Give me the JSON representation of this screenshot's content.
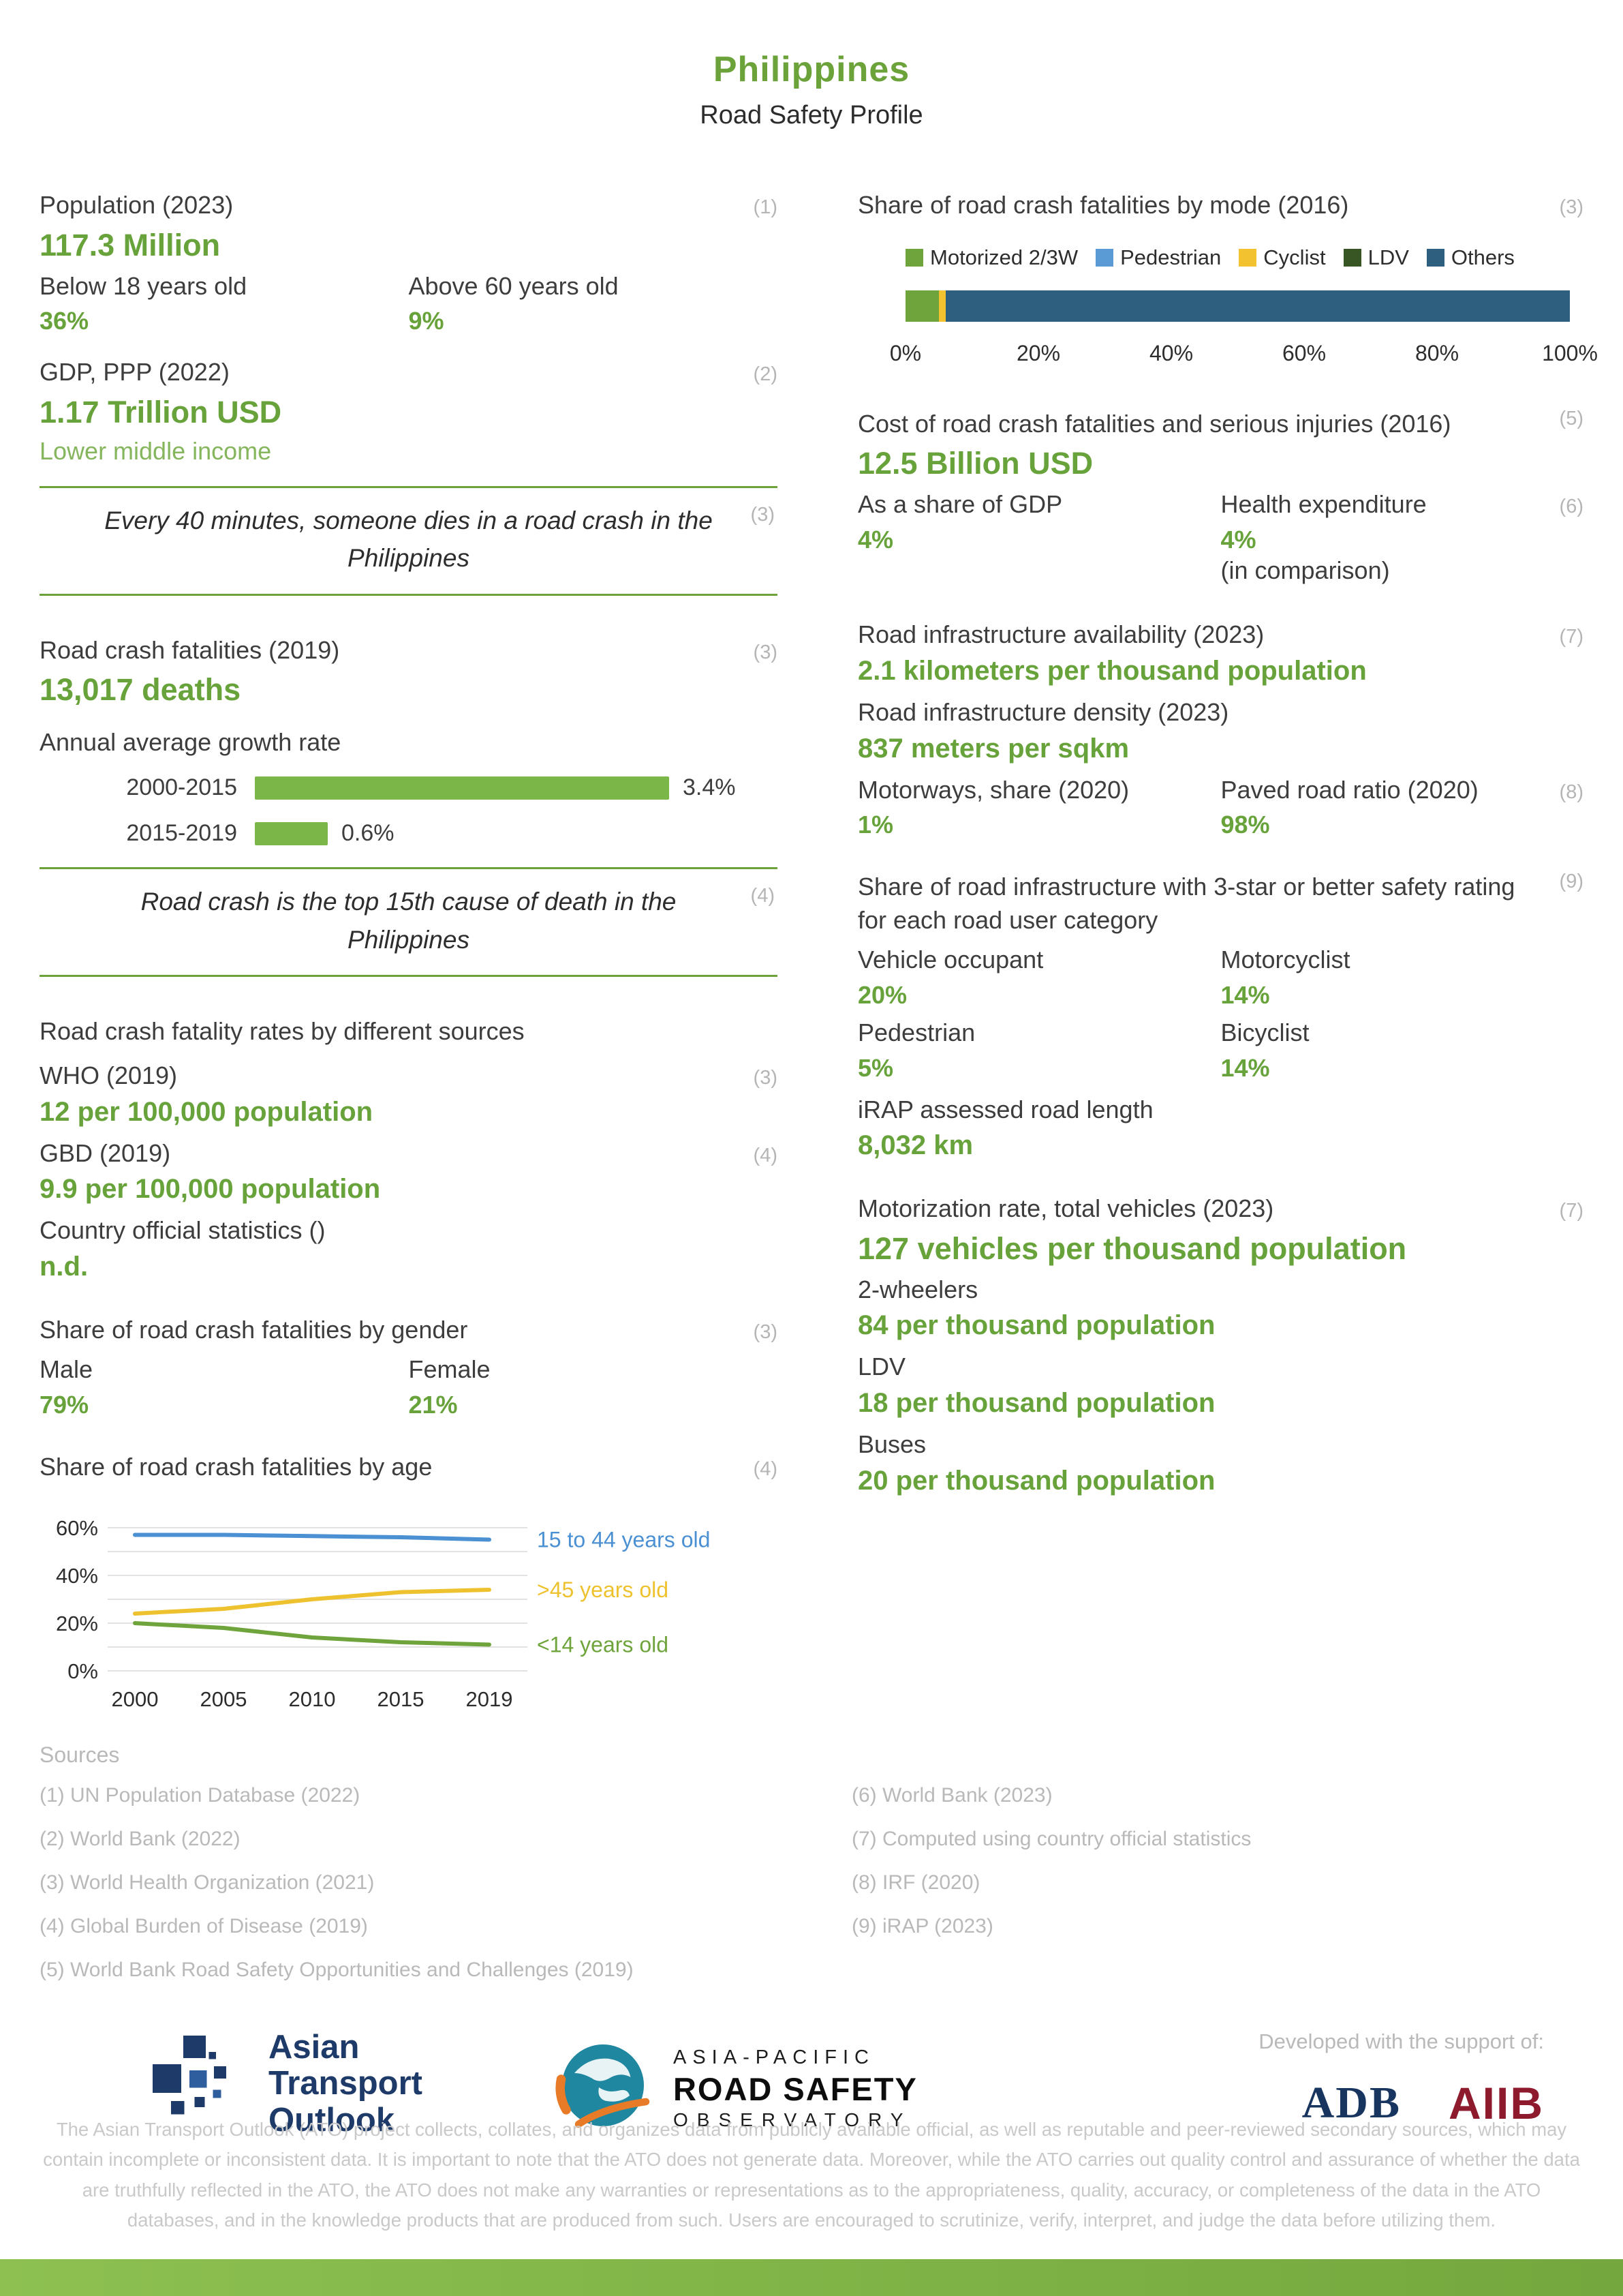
{
  "page": {
    "title": "Philippines",
    "subtitle": "Road Safety Profile"
  },
  "colors": {
    "accent_green": "#6ba33a",
    "value_green": "#67a23a",
    "light_green": "#85b55c",
    "ref_gray": "#b5b5b5",
    "footer_bar_green": "#7fb24a",
    "ato_navy": "#1e3a68",
    "aiib_red": "#8d1b2d"
  },
  "left": {
    "population": {
      "label": "Population (2023)",
      "ref": "(1)",
      "value": "117.3 Million",
      "below18_label": "Below 18 years old",
      "below18_value": "36%",
      "above60_label": "Above 60 years old",
      "above60_value": "9%"
    },
    "gdp": {
      "label": "GDP, PPP (2022)",
      "ref": "(2)",
      "value": "1.17 Trillion USD",
      "income": "Lower middle income"
    },
    "callout1": {
      "text": "Every 40 minutes, someone dies in a road crash in the Philippines",
      "ref": "(3)"
    },
    "fatalities": {
      "label": "Road crash fatalities (2019)",
      "ref": "(3)",
      "value": "13,017 deaths"
    },
    "growth_title": "Annual average growth rate",
    "callout2": {
      "text": "Road crash is the top 15th cause of death in the Philippines",
      "ref": "(4)"
    },
    "rates": {
      "title": "Road crash fatality rates by different sources",
      "who_label": "WHO (2019)",
      "who_ref": "(3)",
      "who_value": "12 per 100,000 population",
      "gbd_label": "GBD (2019)",
      "gbd_ref": "(4)",
      "gbd_value": "9.9 per 100,000 population",
      "official_label": "Country official statistics ()",
      "official_value": "n.d."
    },
    "gender": {
      "title": "Share of road crash fatalities by gender",
      "ref": "(3)",
      "male_label": "Male",
      "male_value": "79%",
      "female_label": "Female",
      "female_value": "21%"
    },
    "age_title": "Share of road crash fatalities by age",
    "age_ref": "(4)"
  },
  "right": {
    "mode": {
      "title": "Share of road crash fatalities by mode (2016)",
      "ref": "(3)"
    },
    "cost": {
      "label": "Cost of road crash fatalities and serious injuries (2016)",
      "ref": "(5)",
      "value": "12.5 Billion USD",
      "gdp_label": "As a share of GDP",
      "gdp_value": "4%",
      "health_label": "Health expenditure",
      "health_ref": "(6)",
      "health_value": "4%",
      "health_note": "(in comparison)"
    },
    "infra": {
      "availability_label": "Road infrastructure availability (2023)",
      "ref": "(7)",
      "availability_value": "2.1 kilometers per thousand population",
      "density_label": "Road infrastructure density (2023)",
      "density_value": "837 meters per sqkm",
      "motorways_label": "Motorways, share (2020)",
      "motorways_value": "1%",
      "paved_label": "Paved road ratio (2020)",
      "paved_ref": "(8)",
      "paved_value": "98%"
    },
    "star": {
      "title": "Share of road infrastructure with 3-star or better safety rating for each road user category",
      "ref": "(9)",
      "vo_label": "Vehicle occupant",
      "vo_value": "20%",
      "mc_label": "Motorcyclist",
      "mc_value": "14%",
      "ped_label": "Pedestrian",
      "ped_value": "5%",
      "bi_label": "Bicyclist",
      "bi_value": "14%",
      "irap_label": "iRAP assessed road length",
      "irap_value": "8,032 km"
    },
    "motorization": {
      "label": "Motorization rate, total vehicles (2023)",
      "ref": "(7)",
      "value": "127 vehicles per thousand population",
      "tw_label": "2-wheelers",
      "tw_value": "84 per thousand population",
      "ldv_label": "LDV",
      "ldv_value": "18 per thousand population",
      "bus_label": "Buses",
      "bus_value": "20 per thousand population"
    }
  },
  "sources": {
    "title": "Sources",
    "left": [
      "(1) UN Population Database (2022)",
      "(2) World Bank (2022)",
      "(3) World Health Organization (2021)",
      "(4) Global Burden of Disease (2019)",
      "(5) World Bank Road Safety Opportunities and Challenges (2019)"
    ],
    "right": [
      "(6) World Bank (2023)",
      "(7) Computed using country official statistics",
      "(8) IRF (2020)",
      "(9) iRAP (2023)"
    ]
  },
  "footer": {
    "support_label": "Developed with the support of:",
    "ato_lines": [
      "Asian",
      "Transport",
      "Outlook"
    ],
    "arso_lines": [
      "ASIA-PACIFIC",
      "ROAD SAFETY",
      "OBSERVATORY"
    ],
    "adb": "ADB",
    "aiib": "AIIB",
    "disclaimer": "The Asian Transport Outlook (ATO) project collects, collates, and organizes data from publicly available official, as well as reputable and peer-reviewed secondary sources, which may contain incomplete or inconsistent data. It is important to note that the ATO does not generate data. Moreover, while the ATO carries out quality control and assurance of whether the data are truthfully reflected in the ATO, the ATO does not make any warranties or representations as to the appropriateness, quality, accuracy, or completeness of the data in the ATO databases, and in the knowledge products that are produced from such. Users are encouraged to scrutinize, verify, interpret, and judge the data before utilizing them."
  },
  "chart_data": [
    {
      "id": "mode-share",
      "type": "bar",
      "variant": "stacked-horizontal",
      "title": "Share of road crash fatalities by mode (2016)",
      "series": [
        {
          "name": "Motorized 2/3W",
          "color": "#6fa43c",
          "value": 5
        },
        {
          "name": "Pedestrian",
          "color": "#5b9bd5",
          "value": 0
        },
        {
          "name": "Cyclist",
          "color": "#f2c230",
          "value": 1
        },
        {
          "name": "LDV",
          "color": "#375623",
          "value": 0
        },
        {
          "name": "Others",
          "color": "#2e5f7e",
          "value": 94
        }
      ],
      "xlim": [
        0,
        100
      ],
      "ticks": [
        "0%",
        "20%",
        "40%",
        "60%",
        "80%",
        "100%"
      ],
      "legend_position": "top"
    },
    {
      "id": "growth-rate",
      "type": "bar",
      "variant": "horizontal",
      "title": "Annual average growth rate",
      "categories": [
        "2000-2015",
        "2015-2019"
      ],
      "values": [
        3.4,
        0.6
      ],
      "labels": [
        "3.4%",
        "0.6%"
      ],
      "color": "#7ab648",
      "xmax": 3.8
    },
    {
      "id": "age-share",
      "type": "line",
      "title": "Share of road crash fatalities by age",
      "x": [
        2000,
        2005,
        2010,
        2015,
        2019
      ],
      "yticks": [
        0,
        20,
        40,
        60
      ],
      "ylim": [
        0,
        60
      ],
      "grid": true,
      "series": [
        {
          "name": "15 to 44 years old",
          "color": "#4a90d2",
          "values": [
            57,
            57,
            56.5,
            56,
            55
          ]
        },
        {
          "name": ">45 years old",
          "color": "#eec22e",
          "values": [
            24,
            26,
            30,
            33,
            34
          ]
        },
        {
          "name": "<14 years old",
          "color": "#6fa43c",
          "values": [
            20,
            18,
            14,
            12,
            11
          ]
        }
      ],
      "annotation_position": "right"
    }
  ]
}
